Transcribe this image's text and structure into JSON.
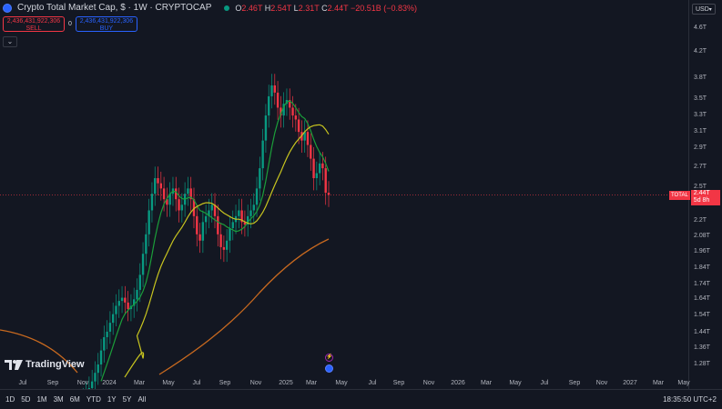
{
  "header": {
    "title": "Crypto Total Market Cap, $ · 1W · CRYPTOCAP",
    "ohlc": [
      {
        "k": "O",
        "v": "2.46T"
      },
      {
        "k": "H",
        "v": "2.54T"
      },
      {
        "k": "L",
        "v": "2.31T"
      },
      {
        "k": "C",
        "v": "2.44T"
      }
    ],
    "change": "−20.51B (−0.83%)"
  },
  "trade": {
    "sell_price": "2,436,431,922,306",
    "sell_label": "SELL",
    "spread": "0",
    "buy_price": "2,436,431,922,306",
    "buy_label": "BUY"
  },
  "price_axis": {
    "currency": "USD",
    "ticks": [
      "4.6T",
      "4.2T",
      "3.8T",
      "3.5T",
      "3.3T",
      "3.1T",
      "2.9T",
      "2.7T",
      "2.5T",
      "2.2T",
      "2.08T",
      "1.96T",
      "1.84T",
      "1.74T",
      "1.64T",
      "1.54T",
      "1.44T",
      "1.36T",
      "1.28T"
    ],
    "last_label": "TOTAL",
    "last_price": "2.44T",
    "countdown": "5d 8h"
  },
  "time_axis": [
    "Jul",
    "Sep",
    "Nov",
    "2024",
    "Mar",
    "May",
    "Jul",
    "Sep",
    "Nov",
    "2025",
    "Mar",
    "May",
    "Jul",
    "Sep",
    "Nov",
    "2026",
    "Mar",
    "May",
    "Jul",
    "Sep",
    "Nov",
    "2027",
    "Mar",
    "May"
  ],
  "bottombar": {
    "ranges": [
      "1D",
      "5D",
      "1M",
      "3M",
      "6M",
      "YTD",
      "1Y",
      "5Y",
      "All"
    ],
    "clock": "18:35:50 UTC+2"
  },
  "logo": "TradingView",
  "colors": {
    "bg": "#131722",
    "up": "#089981",
    "down": "#f23645",
    "ma_short": "#1b9e3a",
    "ma_mid": "#c8c51f",
    "ma_long": "#c8691f"
  },
  "chart_data": {
    "type": "candlestick",
    "timeframe": "1W",
    "y_scale": "log",
    "ylim": [
      1.2,
      4.8
    ],
    "x_range": [
      "2023-06",
      "2027-05"
    ],
    "candle_closes_T": [
      1.1,
      1.12,
      1.15,
      1.17,
      1.2,
      1.24,
      1.28,
      1.35,
      1.42,
      1.45,
      1.5,
      1.55,
      1.6,
      1.63,
      1.65,
      1.62,
      1.58,
      1.6,
      1.64,
      1.7,
      1.8,
      1.95,
      2.1,
      2.3,
      2.45,
      2.6,
      2.55,
      2.5,
      2.4,
      2.35,
      2.45,
      2.5,
      2.4,
      2.3,
      2.35,
      2.45,
      2.5,
      2.4,
      2.25,
      2.1,
      2.05,
      2.2,
      2.25,
      2.3,
      2.35,
      2.25,
      2.1,
      2.0,
      1.98,
      2.05,
      2.15,
      2.2,
      2.25,
      2.3,
      2.2,
      2.18,
      2.25,
      2.3,
      2.35,
      2.5,
      2.7,
      3.0,
      3.3,
      3.55,
      3.7,
      3.6,
      3.4,
      3.3,
      3.45,
      3.5,
      3.4,
      3.3,
      3.25,
      3.1,
      3.0,
      3.1,
      2.95,
      2.8,
      2.6,
      2.65,
      2.75,
      2.7,
      2.46,
      2.44
    ],
    "moving_averages": [
      {
        "color": "green",
        "last": 3.08
      },
      {
        "color": "yellow",
        "last": 2.62
      },
      {
        "color": "orange",
        "last": 2.05
      }
    ],
    "last_close": "2.44T"
  }
}
